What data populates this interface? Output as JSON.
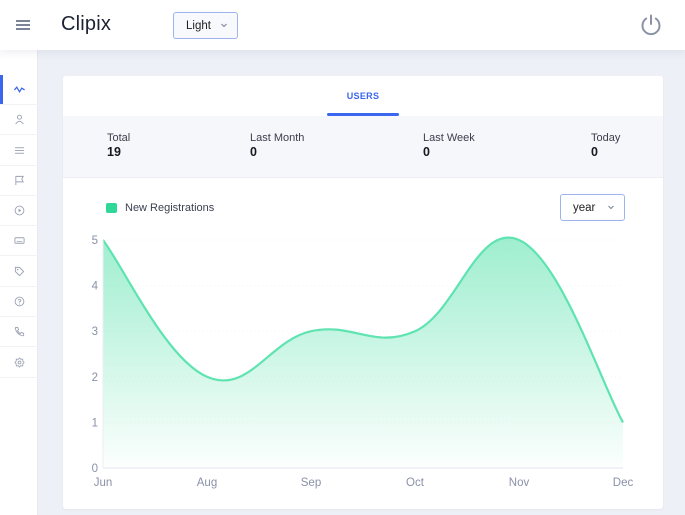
{
  "header": {
    "brand": "Clipix",
    "theme_select": {
      "value": "Light"
    },
    "menu_icon": "hamburger-icon",
    "power_icon": "power-icon"
  },
  "sidebar": {
    "items": [
      {
        "icon": "activity-icon",
        "active": true
      },
      {
        "icon": "user-icon",
        "active": false
      },
      {
        "icon": "list-icon",
        "active": false
      },
      {
        "icon": "flag-icon",
        "active": false
      },
      {
        "icon": "play-circle-icon",
        "active": false
      },
      {
        "icon": "keyboard-icon",
        "active": false
      },
      {
        "icon": "tag-icon",
        "active": false
      },
      {
        "icon": "help-circle-icon",
        "active": false
      },
      {
        "icon": "phone-icon",
        "active": false
      },
      {
        "icon": "settings-icon",
        "active": false
      }
    ]
  },
  "card": {
    "tab": {
      "label": "USERS"
    },
    "stats": [
      {
        "label": "Total",
        "value": "19"
      },
      {
        "label": "Last Month",
        "value": "0"
      },
      {
        "label": "Last Week",
        "value": "0"
      },
      {
        "label": "Today",
        "value": "0"
      }
    ],
    "legend_label": "New Registrations",
    "period_select": {
      "value": "year"
    }
  },
  "colors": {
    "accent": "#3a66f0",
    "series": "#2fd898",
    "series_line": "#5fe3b0",
    "axis_text": "#8a91a8"
  },
  "chart_data": {
    "type": "area",
    "title": "",
    "xlabel": "",
    "ylabel": "",
    "categories": [
      "Jun",
      "Aug",
      "Sep",
      "Oct",
      "Nov",
      "Dec"
    ],
    "series": [
      {
        "name": "New Registrations",
        "values": [
          5,
          2,
          3,
          3,
          5,
          1
        ]
      }
    ],
    "yticks": [
      0,
      1,
      2,
      3,
      4,
      5
    ],
    "ylim": [
      0,
      5
    ],
    "grid": true,
    "legend_position": "top-left",
    "curve": "smooth"
  }
}
